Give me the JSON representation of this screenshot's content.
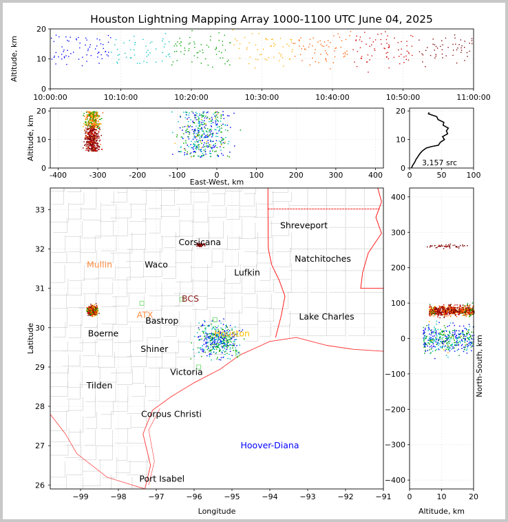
{
  "title": "Houston Lightning Mapping Array 1000-1100 UTC June 04, 2025",
  "colors": {
    "sequence": [
      "#0000ff",
      "#00bfbf",
      "#00a000",
      "#ffb000",
      "#ff6000",
      "#d00000",
      "#800000"
    ],
    "state_border": "#ff0000",
    "coast": "#ff3030",
    "county": "#c0c0c0"
  },
  "chart_data": [
    {
      "id": "time-height",
      "type": "scatter",
      "xlabel": "",
      "ylabel": "Altitude, km",
      "x_ticks": [
        "10:00:00",
        "10:10:00",
        "10:20:00",
        "10:30:00",
        "10:40:00",
        "10:50:00",
        "11:00:00"
      ],
      "x_range": [
        "10:00:00",
        "11:00:00"
      ],
      "y_ticks": [
        0,
        10,
        20
      ],
      "ylim": [
        0,
        20
      ],
      "grid": true
    },
    {
      "id": "east-west-height",
      "type": "scatter",
      "xlabel": "East-West, km",
      "ylabel": "Altitude, km",
      "x_ticks": [
        -400,
        -300,
        -200,
        -100,
        0,
        100,
        200,
        300,
        400
      ],
      "xlim": [
        -420,
        420
      ],
      "y_ticks": [
        0,
        10,
        20
      ],
      "ylim": [
        0,
        21
      ],
      "clusters": [
        {
          "x_center": -315,
          "x_spread": 18,
          "alt_min": 6,
          "alt_max": 20,
          "count": 700
        },
        {
          "x_center": -35,
          "x_spread": 55,
          "alt_min": 4,
          "alt_max": 20,
          "count": 420
        }
      ],
      "grid": true
    },
    {
      "id": "altitude-histogram",
      "type": "line",
      "x_ticks": [
        0,
        50,
        100
      ],
      "xlim": [
        0,
        100
      ],
      "y_ticks": [
        0,
        10,
        20
      ],
      "ylim": [
        0,
        21
      ],
      "annotation": "3,157 src",
      "altitude": [
        0,
        1,
        2,
        3,
        4,
        5,
        6,
        7,
        7.5,
        8,
        9,
        10,
        11,
        12,
        13,
        14,
        15,
        16,
        17,
        18,
        19,
        19.5
      ],
      "count": [
        3,
        5,
        8,
        10,
        13,
        16,
        20,
        26,
        34,
        45,
        48,
        52,
        54,
        57,
        60,
        58,
        55,
        51,
        47,
        40,
        32,
        28
      ]
    },
    {
      "id": "plan-view",
      "type": "scatter",
      "xlabel": "Longitude",
      "ylabel": "Latitude",
      "x_ticks": [
        -99,
        -98,
        -97,
        -96,
        -95,
        -94,
        -93,
        -92,
        -91
      ],
      "xlim": [
        -99.8,
        -91
      ],
      "y_ticks": [
        26,
        27,
        28,
        29,
        30,
        31,
        32,
        33
      ],
      "ylim": [
        25.9,
        33.55
      ],
      "cities": [
        {
          "name": "Shreveport",
          "lon": -93.1,
          "lat": 32.6,
          "color": "#000000"
        },
        {
          "name": "Corsicana",
          "lon": -95.85,
          "lat": 32.17,
          "color": "#000000"
        },
        {
          "name": "Natchitoches",
          "lon": -92.6,
          "lat": 31.75,
          "color": "#000000"
        },
        {
          "name": "Mullin",
          "lon": -98.5,
          "lat": 31.6,
          "color": "#ff8c40"
        },
        {
          "name": "Waco",
          "lon": -97.0,
          "lat": 31.6,
          "color": "#000000"
        },
        {
          "name": "Lufkin",
          "lon": -94.6,
          "lat": 31.4,
          "color": "#000000"
        },
        {
          "name": "BCS",
          "lon": -96.1,
          "lat": 30.73,
          "color": "#8b1a1a"
        },
        {
          "name": "ATX",
          "lon": -97.3,
          "lat": 30.32,
          "color": "#ff8c40"
        },
        {
          "name": "Lake Charles",
          "lon": -92.5,
          "lat": 30.28,
          "color": "#000000"
        },
        {
          "name": "Bastrop",
          "lon": -96.85,
          "lat": 30.17,
          "color": "#000000"
        },
        {
          "name": "Boerne",
          "lon": -98.4,
          "lat": 29.85,
          "color": "#000000"
        },
        {
          "name": "Houston",
          "lon": -95.0,
          "lat": 29.85,
          "color": "#ffc000"
        },
        {
          "name": "Shiner",
          "lon": -97.05,
          "lat": 29.45,
          "color": "#000000"
        },
        {
          "name": "Victoria",
          "lon": -96.2,
          "lat": 28.87,
          "color": "#000000"
        },
        {
          "name": "Tilden",
          "lon": -98.5,
          "lat": 28.53,
          "color": "#000000"
        },
        {
          "name": "Corpus Christi",
          "lon": -96.6,
          "lat": 27.8,
          "color": "#000000"
        },
        {
          "name": "Hoover-Diana",
          "lon": -94.0,
          "lat": 27.0,
          "color": "#0000ff"
        },
        {
          "name": "Port Isabel",
          "lon": -96.85,
          "lat": 26.15,
          "color": "#000000"
        }
      ],
      "stations": [
        {
          "lon": -97.38,
          "lat": 30.62
        },
        {
          "lon": -96.32,
          "lat": 30.72
        },
        {
          "lon": -94.85,
          "lat": 29.33
        },
        {
          "lon": -95.88,
          "lat": 29.0
        },
        {
          "lon": -95.1,
          "lat": 29.7
        },
        {
          "lon": -95.45,
          "lat": 30.2
        }
      ],
      "clusters": [
        {
          "lon": -98.7,
          "lat": 30.45,
          "spread_lon": 0.1,
          "spread_lat": 0.1,
          "count": 650
        },
        {
          "lon": -95.4,
          "lat": 29.72,
          "spread_lon": 0.45,
          "spread_lat": 0.35,
          "count": 420
        },
        {
          "lon": -95.85,
          "lat": 32.12,
          "spread_lon": 0.12,
          "spread_lat": 0.05,
          "count": 45
        }
      ],
      "grid": true
    },
    {
      "id": "north-south-height",
      "type": "scatter",
      "xlabel": "Altitude, km",
      "ylabel": "North-South, km",
      "x_ticks": [
        0,
        10,
        20
      ],
      "xlim": [
        0,
        20
      ],
      "y_ticks": [
        -400,
        -300,
        -200,
        -100,
        0,
        100,
        200,
        300,
        400
      ],
      "ylim": [
        -425,
        425
      ],
      "clusters": [
        {
          "ns_center": 80,
          "ns_spread": 15,
          "alt_min": 6,
          "alt_max": 20,
          "count": 700
        },
        {
          "ns_center": 0,
          "ns_spread": 40,
          "alt_min": 4,
          "alt_max": 20,
          "count": 420
        },
        {
          "ns_center": 262,
          "ns_spread": 6,
          "alt_min": 5,
          "alt_max": 18,
          "count": 45
        }
      ],
      "grid": true
    }
  ]
}
